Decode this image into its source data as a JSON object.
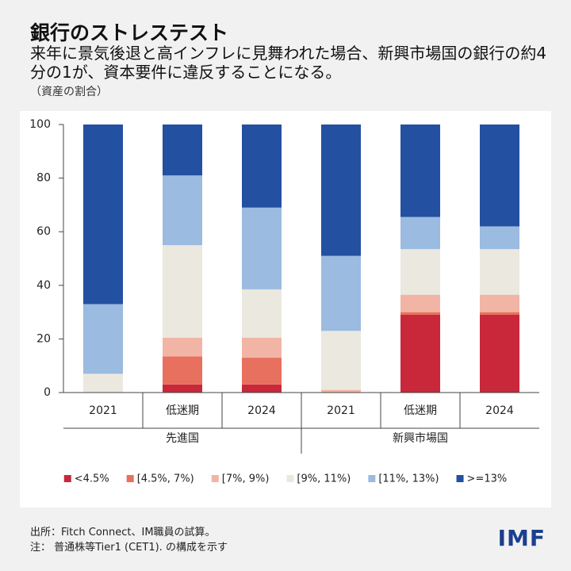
{
  "title": "銀行のストレステスト",
  "subtitle": "来年に景気後退と高インフレに見舞われた場合、新興市場国の銀行の約4分の1が、資本要件に違反することになる。",
  "chart_data": {
    "type": "stacked-bar",
    "y_note": "（資産の割合）",
    "categories": [
      "2021",
      "低迷期",
      "2024",
      "2021",
      "低迷期",
      "2024"
    ],
    "groups": [
      "先進国",
      "新興市場国"
    ],
    "ylim": [
      0,
      100
    ],
    "yticks": [
      0,
      20,
      40,
      60,
      80,
      100
    ],
    "series": [
      {
        "name": "<4.5%",
        "color": "#c8283a",
        "values": [
          0,
          3,
          3,
          0,
          29,
          29
        ]
      },
      {
        "name": "[4.5%, 7%)",
        "color": "#e8705e",
        "values": [
          0,
          10.5,
          10,
          0,
          1,
          1
        ]
      },
      {
        "name": "[7%, 9%)",
        "color": "#f2b5a5",
        "values": [
          0,
          7,
          7.5,
          1,
          6.5,
          6.5
        ]
      },
      {
        "name": "[9%, 11%)",
        "color": "#ebe8df",
        "values": [
          7,
          34.5,
          18,
          22,
          17,
          17
        ]
      },
      {
        "name": "[11%, 13%)",
        "color": "#9bbbe0",
        "values": [
          26,
          26,
          30.5,
          28,
          12,
          8.5
        ]
      },
      {
        "name": ">=13%",
        "color": "#2350a0",
        "values": [
          67,
          19,
          31,
          49,
          34.5,
          38
        ]
      }
    ]
  },
  "source": "出所：Fitch Connect、IM職員の試算。",
  "note": "注：  普通株等Tier1 (CET1). の構成を示す",
  "logo": "IMF"
}
